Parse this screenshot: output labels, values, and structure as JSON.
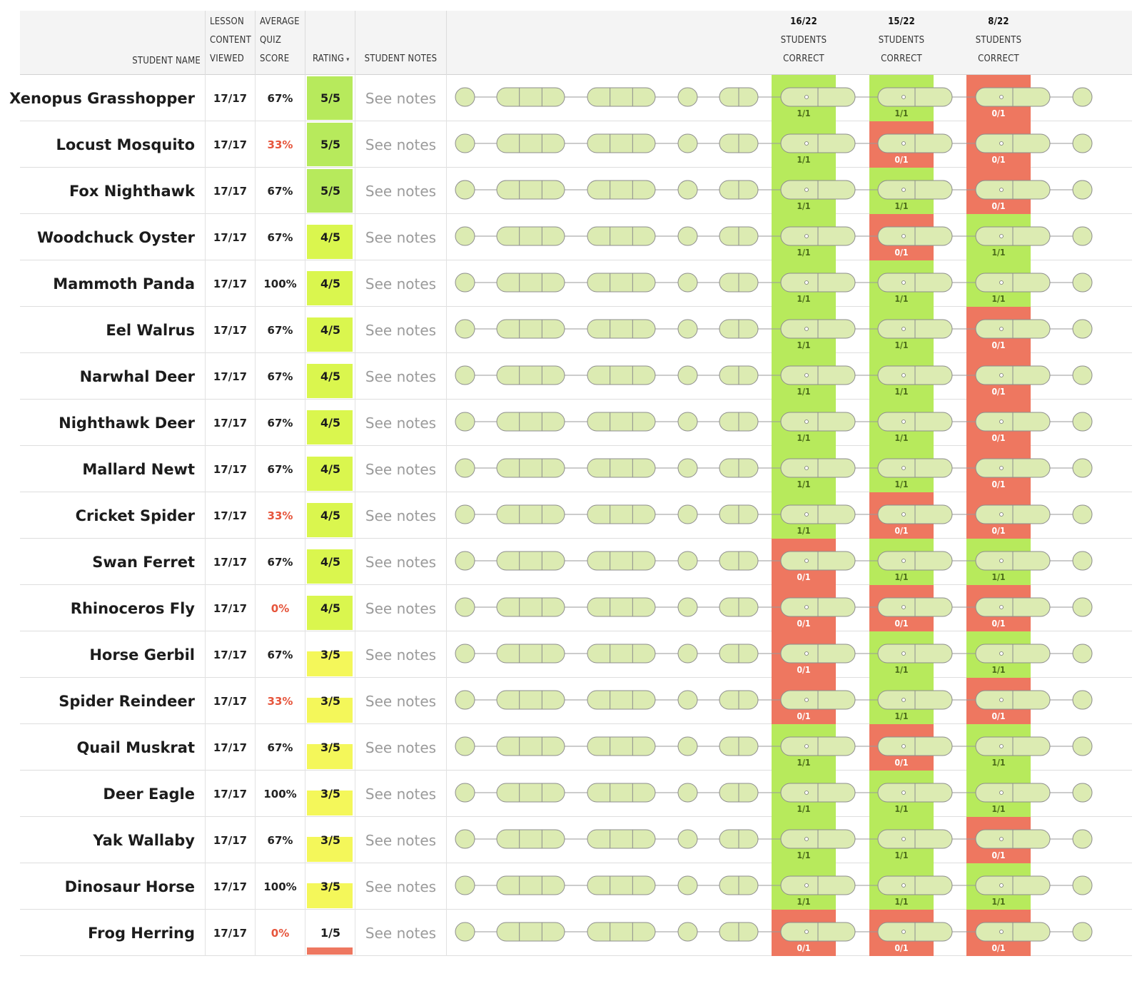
{
  "colors": {
    "correct": "#b7ea5c",
    "incorrect": "#ee7760",
    "score_low": "#e6553c",
    "rating_5": "#b7ea5c",
    "rating_4": "#daf64e",
    "rating_3": "#f4f75a",
    "rating_1": "#ee7760",
    "node_fill": "#dcebb2",
    "node_stroke": "#8d8d8d"
  },
  "header": {
    "student_name": "STUDENT NAME",
    "lesson_content_viewed": [
      "LESSON",
      "CONTENT",
      "VIEWED"
    ],
    "average_quiz_score": [
      "AVERAGE",
      "QUIZ",
      "SCORE"
    ],
    "rating": "RATING",
    "rating_sort_icon": "caret-down-icon",
    "student_notes": "STUDENT NOTES",
    "questions": [
      {
        "count": "16/22",
        "line2": "STUDENTS",
        "line3": "CORRECT"
      },
      {
        "count": "15/22",
        "line2": "STUDENTS",
        "line3": "CORRECT"
      },
      {
        "count": "8/22",
        "line2": "STUDENTS",
        "line3": "CORRECT"
      }
    ]
  },
  "students": [
    {
      "name": "Xenopus Grasshopper",
      "viewed": "17/17",
      "quiz": "67%",
      "quiz_low": false,
      "rating": "5/5",
      "rating_level": 5,
      "notes": "See notes",
      "q": [
        "1/1",
        "1/1",
        "0/1"
      ]
    },
    {
      "name": "Locust Mosquito",
      "viewed": "17/17",
      "quiz": "33%",
      "quiz_low": true,
      "rating": "5/5",
      "rating_level": 5,
      "notes": "See notes",
      "q": [
        "1/1",
        "0/1",
        "0/1"
      ]
    },
    {
      "name": "Fox Nighthawk",
      "viewed": "17/17",
      "quiz": "67%",
      "quiz_low": false,
      "rating": "5/5",
      "rating_level": 5,
      "notes": "See notes",
      "q": [
        "1/1",
        "1/1",
        "0/1"
      ]
    },
    {
      "name": "Woodchuck Oyster",
      "viewed": "17/17",
      "quiz": "67%",
      "quiz_low": false,
      "rating": "4/5",
      "rating_level": 4,
      "notes": "See notes",
      "q": [
        "1/1",
        "0/1",
        "1/1"
      ]
    },
    {
      "name": "Mammoth Panda",
      "viewed": "17/17",
      "quiz": "100%",
      "quiz_low": false,
      "rating": "4/5",
      "rating_level": 4,
      "notes": "See notes",
      "q": [
        "1/1",
        "1/1",
        "1/1"
      ]
    },
    {
      "name": "Eel Walrus",
      "viewed": "17/17",
      "quiz": "67%",
      "quiz_low": false,
      "rating": "4/5",
      "rating_level": 4,
      "notes": "See notes",
      "q": [
        "1/1",
        "1/1",
        "0/1"
      ]
    },
    {
      "name": "Narwhal Deer",
      "viewed": "17/17",
      "quiz": "67%",
      "quiz_low": false,
      "rating": "4/5",
      "rating_level": 4,
      "notes": "See notes",
      "q": [
        "1/1",
        "1/1",
        "0/1"
      ]
    },
    {
      "name": "Nighthawk Deer",
      "viewed": "17/17",
      "quiz": "67%",
      "quiz_low": false,
      "rating": "4/5",
      "rating_level": 4,
      "notes": "See notes",
      "q": [
        "1/1",
        "1/1",
        "0/1"
      ]
    },
    {
      "name": "Mallard Newt",
      "viewed": "17/17",
      "quiz": "67%",
      "quiz_low": false,
      "rating": "4/5",
      "rating_level": 4,
      "notes": "See notes",
      "q": [
        "1/1",
        "1/1",
        "0/1"
      ]
    },
    {
      "name": "Cricket Spider",
      "viewed": "17/17",
      "quiz": "33%",
      "quiz_low": true,
      "rating": "4/5",
      "rating_level": 4,
      "notes": "See notes",
      "q": [
        "1/1",
        "0/1",
        "0/1"
      ]
    },
    {
      "name": "Swan Ferret",
      "viewed": "17/17",
      "quiz": "67%",
      "quiz_low": false,
      "rating": "4/5",
      "rating_level": 4,
      "notes": "See notes",
      "q": [
        "0/1",
        "1/1",
        "1/1"
      ]
    },
    {
      "name": "Rhinoceros Fly",
      "viewed": "17/17",
      "quiz": "0%",
      "quiz_low": true,
      "rating": "4/5",
      "rating_level": 4,
      "notes": "See notes",
      "q": [
        "0/1",
        "0/1",
        "0/1"
      ]
    },
    {
      "name": "Horse Gerbil",
      "viewed": "17/17",
      "quiz": "67%",
      "quiz_low": false,
      "rating": "3/5",
      "rating_level": 3,
      "notes": "See notes",
      "q": [
        "0/1",
        "1/1",
        "1/1"
      ]
    },
    {
      "name": "Spider Reindeer",
      "viewed": "17/17",
      "quiz": "33%",
      "quiz_low": true,
      "rating": "3/5",
      "rating_level": 3,
      "notes": "See notes",
      "q": [
        "0/1",
        "1/1",
        "0/1"
      ]
    },
    {
      "name": "Quail Muskrat",
      "viewed": "17/17",
      "quiz": "67%",
      "quiz_low": false,
      "rating": "3/5",
      "rating_level": 3,
      "notes": "See notes",
      "q": [
        "1/1",
        "0/1",
        "1/1"
      ]
    },
    {
      "name": "Deer Eagle",
      "viewed": "17/17",
      "quiz": "100%",
      "quiz_low": false,
      "rating": "3/5",
      "rating_level": 3,
      "notes": "See notes",
      "q": [
        "1/1",
        "1/1",
        "1/1"
      ]
    },
    {
      "name": "Yak Wallaby",
      "viewed": "17/17",
      "quiz": "67%",
      "quiz_low": false,
      "rating": "3/5",
      "rating_level": 3,
      "notes": "See notes",
      "q": [
        "1/1",
        "1/1",
        "0/1"
      ]
    },
    {
      "name": "Dinosaur Horse",
      "viewed": "17/17",
      "quiz": "100%",
      "quiz_low": false,
      "rating": "3/5",
      "rating_level": 3,
      "notes": "See notes",
      "q": [
        "1/1",
        "1/1",
        "1/1"
      ]
    },
    {
      "name": "Frog Herring",
      "viewed": "17/17",
      "quiz": "0%",
      "quiz_low": true,
      "rating": "1/5",
      "rating_level": 1,
      "notes": "See notes",
      "q": [
        "0/1",
        "0/1",
        "0/1"
      ]
    }
  ]
}
